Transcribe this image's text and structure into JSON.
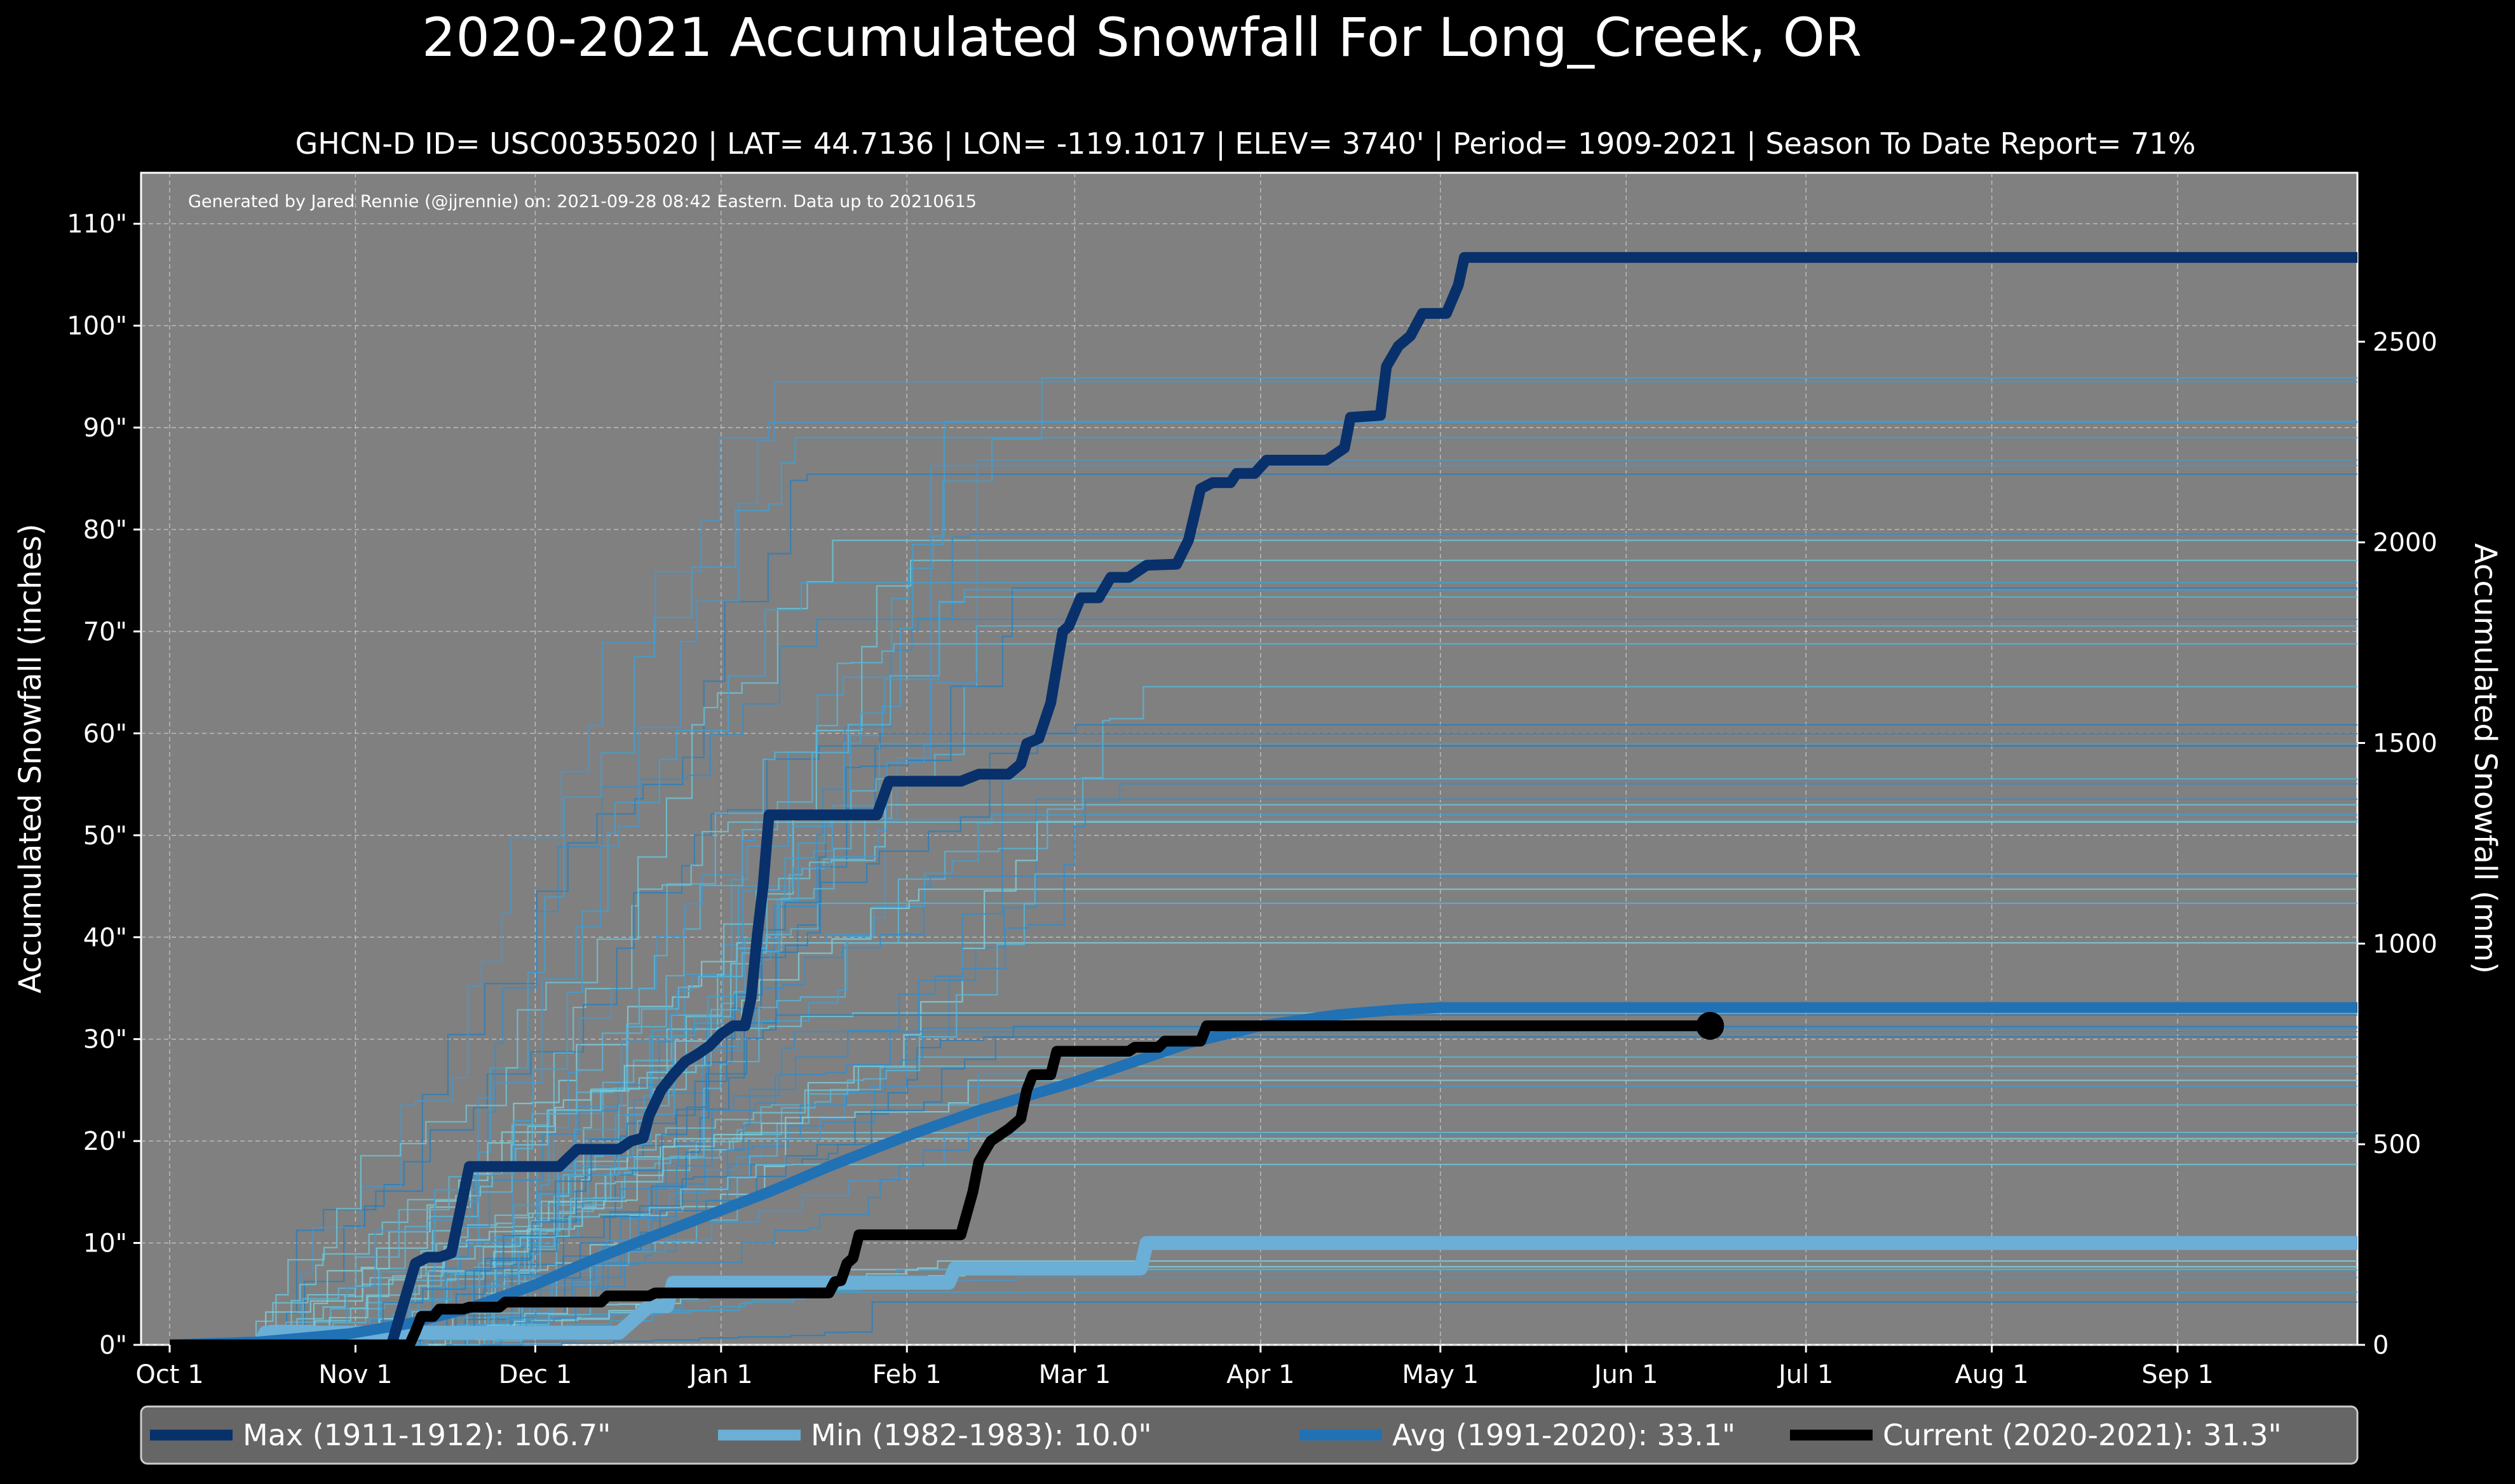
{
  "chart_data": {
    "type": "line",
    "title": "2020-2021 Accumulated Snowfall For Long_Creek, OR",
    "subtitle": "GHCN-D ID= USC00355020 | LAT= 44.7136 | LON= -119.1017 | ELEV= 3740' | Period= 1909-2021 | Season To Date Report= 71%",
    "credit": "Generated by Jared Rennie (@jjrennie) on: 2021-09-28 08:42 Eastern. Data up to 20210615",
    "ylabel": "Accumulated Snowfall (inches)",
    "y2label": "Accumulated Snowfall (mm)",
    "xlim": [
      0,
      365
    ],
    "ylim": [
      0,
      115
    ],
    "x_ticks": [
      {
        "day": 0,
        "label": "Oct 1"
      },
      {
        "day": 31,
        "label": "Nov 1"
      },
      {
        "day": 61,
        "label": "Dec 1"
      },
      {
        "day": 92,
        "label": "Jan 1"
      },
      {
        "day": 123,
        "label": "Feb 1"
      },
      {
        "day": 151,
        "label": "Mar 1"
      },
      {
        "day": 182,
        "label": "Apr 1"
      },
      {
        "day": 212,
        "label": "May 1"
      },
      {
        "day": 243,
        "label": "Jun 1"
      },
      {
        "day": 273,
        "label": "Jul 1"
      },
      {
        "day": 304,
        "label": "Aug 1"
      },
      {
        "day": 335,
        "label": "Sep 1"
      }
    ],
    "y_ticks": [
      {
        "value": 0,
        "label": "0\""
      },
      {
        "value": 10,
        "label": "10\""
      },
      {
        "value": 20,
        "label": "20\""
      },
      {
        "value": 30,
        "label": "30\""
      },
      {
        "value": 40,
        "label": "40\""
      },
      {
        "value": 50,
        "label": "50\""
      },
      {
        "value": 60,
        "label": "60\""
      },
      {
        "value": 70,
        "label": "70\""
      },
      {
        "value": 80,
        "label": "80\""
      },
      {
        "value": 90,
        "label": "90\""
      },
      {
        "value": 100,
        "label": "100\""
      },
      {
        "value": 110,
        "label": "110\""
      }
    ],
    "y2_ticks": [
      {
        "mm": 0,
        "label": "0"
      },
      {
        "mm": 500,
        "label": "500"
      },
      {
        "mm": 1000,
        "label": "1000"
      },
      {
        "mm": 1500,
        "label": "1500"
      },
      {
        "mm": 2000,
        "label": "2000"
      },
      {
        "mm": 2500,
        "label": "2500"
      }
    ],
    "grid": true,
    "legend_position": "bottom",
    "series": [
      {
        "name": "Max (1911-1912)",
        "total": "106.7\"",
        "legend_label": "Max (1911-1912):  106.7\"",
        "color": "#08306b",
        "points": [
          [
            0,
            0
          ],
          [
            37,
            0
          ],
          [
            38,
            2
          ],
          [
            40,
            6
          ],
          [
            41,
            8
          ],
          [
            43,
            8.6
          ],
          [
            45,
            8.6
          ],
          [
            47,
            9
          ],
          [
            50,
            17.5
          ],
          [
            65,
            17.5
          ],
          [
            68,
            19.2
          ],
          [
            75,
            19.2
          ],
          [
            77,
            20
          ],
          [
            79,
            20.3
          ],
          [
            80,
            22.5
          ],
          [
            82,
            25
          ],
          [
            84,
            26.5
          ],
          [
            86,
            27.8
          ],
          [
            88,
            28.5
          ],
          [
            90,
            29.3
          ],
          [
            92,
            30.5
          ],
          [
            94,
            31.3
          ],
          [
            96,
            31.3
          ],
          [
            97,
            34
          ],
          [
            98,
            40
          ],
          [
            99,
            45
          ],
          [
            100,
            52
          ],
          [
            118,
            52
          ],
          [
            120,
            55.3
          ],
          [
            132,
            55.3
          ],
          [
            135,
            56
          ],
          [
            140,
            56
          ],
          [
            142,
            57
          ],
          [
            143,
            59
          ],
          [
            145,
            59.5
          ],
          [
            147,
            63
          ],
          [
            149,
            70
          ],
          [
            150,
            70.5
          ],
          [
            152,
            73.3
          ],
          [
            155,
            73.3
          ],
          [
            157,
            75.3
          ],
          [
            160,
            75.3
          ],
          [
            163,
            76.5
          ],
          [
            168,
            76.6
          ],
          [
            170,
            79
          ],
          [
            172,
            84
          ],
          [
            174,
            84.6
          ],
          [
            177,
            84.6
          ],
          [
            178,
            85.5
          ],
          [
            181,
            85.5
          ],
          [
            183,
            86.8
          ],
          [
            193,
            86.8
          ],
          [
            196,
            88
          ],
          [
            197,
            91
          ],
          [
            202,
            91.2
          ],
          [
            203,
            96
          ],
          [
            205,
            98
          ],
          [
            207,
            99
          ],
          [
            209,
            101.2
          ],
          [
            213,
            101.2
          ],
          [
            215,
            104
          ],
          [
            216,
            106.7
          ],
          [
            365,
            106.7
          ]
        ]
      },
      {
        "name": "Min (1982-1983)",
        "total": "10.0\"",
        "legend_label": "Min (1982-1983):   10.0\"",
        "color": "#6baed6",
        "points": [
          [
            15,
            0
          ],
          [
            16,
            1.2
          ],
          [
            75,
            1.2
          ],
          [
            80,
            3.8
          ],
          [
            83,
            3.8
          ],
          [
            84,
            6.1
          ],
          [
            130,
            6.1
          ],
          [
            131,
            7.5
          ],
          [
            162,
            7.5
          ],
          [
            163,
            10
          ],
          [
            365,
            10
          ]
        ]
      },
      {
        "name": "Avg (1991-2020)",
        "total": "33.1\"",
        "legend_label": "Avg (1991-2020):   33.1\"",
        "color": "#2171b5",
        "points": [
          [
            0,
            0
          ],
          [
            15,
            0.3
          ],
          [
            30,
            1.1
          ],
          [
            40,
            2.1
          ],
          [
            50,
            3.6
          ],
          [
            61,
            5.9
          ],
          [
            70,
            8.2
          ],
          [
            80,
            10.5
          ],
          [
            92,
            13.2
          ],
          [
            100,
            15
          ],
          [
            110,
            17.5
          ],
          [
            123,
            20.5
          ],
          [
            135,
            23
          ],
          [
            151,
            25.8
          ],
          [
            160,
            27.6
          ],
          [
            170,
            29.6
          ],
          [
            182,
            31.3
          ],
          [
            195,
            32.4
          ],
          [
            205,
            32.9
          ],
          [
            212,
            33.1
          ],
          [
            365,
            33.1
          ]
        ]
      },
      {
        "name": "Current (2020-2021)",
        "total": "31.3\"",
        "legend_label": "Current (2020-2021):   31.3\"",
        "color": "#000000",
        "points": [
          [
            0,
            0
          ],
          [
            40,
            0
          ],
          [
            41,
            1.3
          ],
          [
            42,
            2.8
          ],
          [
            44,
            2.8
          ],
          [
            45,
            3.5
          ],
          [
            49,
            3.5
          ],
          [
            50,
            3.7
          ],
          [
            55,
            3.7
          ],
          [
            56,
            4.2
          ],
          [
            72,
            4.2
          ],
          [
            73,
            4.8
          ],
          [
            80,
            4.8
          ],
          [
            81,
            5.1
          ],
          [
            110,
            5.1
          ],
          [
            111,
            6.2
          ],
          [
            112,
            6.3
          ],
          [
            113,
            8
          ],
          [
            114,
            8.5
          ],
          [
            115,
            10.8
          ],
          [
            132,
            10.8
          ],
          [
            134,
            15
          ],
          [
            135,
            18
          ],
          [
            137,
            20
          ],
          [
            140,
            21.2
          ],
          [
            142,
            22.2
          ],
          [
            143,
            25
          ],
          [
            144,
            26.5
          ],
          [
            147,
            26.5
          ],
          [
            148,
            28.8
          ],
          [
            160,
            28.8
          ],
          [
            161,
            29.2
          ],
          [
            165,
            29.2
          ],
          [
            166,
            29.8
          ],
          [
            172,
            29.8
          ],
          [
            173,
            31.3
          ],
          [
            257,
            31.3
          ]
        ]
      }
    ]
  }
}
